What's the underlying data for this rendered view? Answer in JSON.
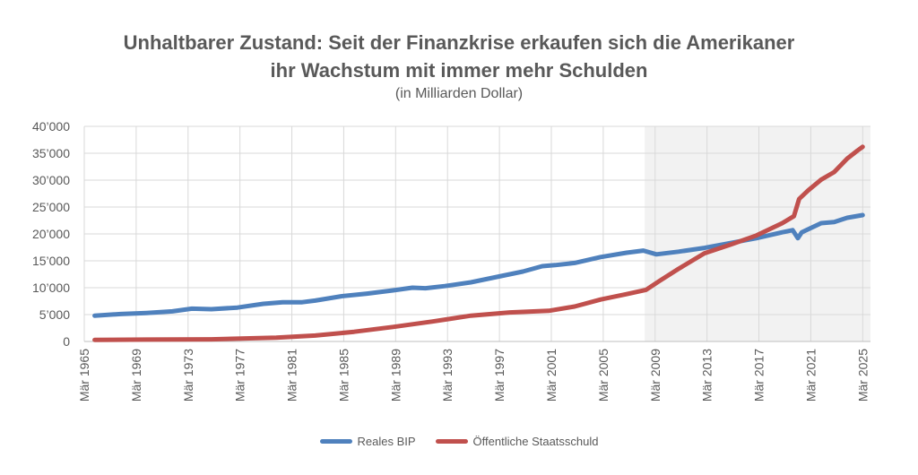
{
  "chart_data": {
    "type": "line",
    "title_line1": "Unhaltbarer Zustand: Seit der Finanzkrise erkaufen sich die Amerikaner",
    "title_line2": "ihr Wachstum mit immer mehr Schulden",
    "subtitle": "(in Milliarden Dollar)",
    "ylim": [
      0,
      40000
    ],
    "xlim": [
      1965.2,
      2025.8
    ],
    "y_ticks": [
      0,
      5000,
      10000,
      15000,
      20000,
      25000,
      30000,
      35000,
      40000
    ],
    "y_tick_labels": [
      "0",
      "5’000",
      "10’000",
      "15’000",
      "20’000",
      "25’000",
      "30’000",
      "35’000",
      "40’000"
    ],
    "x_ticks": [
      1965.2,
      1969.2,
      1973.2,
      1977.2,
      1981.2,
      1985.2,
      1989.2,
      1993.2,
      1997.2,
      2001.2,
      2005.2,
      2009.2,
      2013.2,
      2017.2,
      2021.2,
      2025.2
    ],
    "x_tick_labels": [
      "Mär 1965",
      "Mär 1969",
      "Mär 1973",
      "Mär 1977",
      "Mär 1981",
      "Mär 1985",
      "Mär 1989",
      "Mär 1993",
      "Mär 1997",
      "Mär 2001",
      "Mär 2005",
      "Mär 2009",
      "Mär 2013",
      "Mär 2017",
      "Mär 2021",
      "Mär 2025"
    ],
    "grid": true,
    "legend_position": "bottom",
    "highlight_range": [
      2008.4,
      2025.8
    ],
    "series": [
      {
        "name": "Reales BIP",
        "color": "#4f81bd",
        "points": [
          [
            1966.0,
            4800
          ],
          [
            1968.0,
            5100
          ],
          [
            1970.0,
            5300
          ],
          [
            1972.0,
            5600
          ],
          [
            1973.5,
            6100
          ],
          [
            1975.0,
            6000
          ],
          [
            1977.0,
            6300
          ],
          [
            1979.0,
            7000
          ],
          [
            1980.5,
            7300
          ],
          [
            1982.0,
            7300
          ],
          [
            1983.0,
            7600
          ],
          [
            1985.0,
            8400
          ],
          [
            1987.0,
            8900
          ],
          [
            1989.0,
            9500
          ],
          [
            1990.5,
            10000
          ],
          [
            1991.5,
            9900
          ],
          [
            1993.0,
            10300
          ],
          [
            1995.0,
            11000
          ],
          [
            1997.0,
            12000
          ],
          [
            1999.0,
            13000
          ],
          [
            2000.5,
            14000
          ],
          [
            2001.5,
            14200
          ],
          [
            2003.0,
            14600
          ],
          [
            2005.0,
            15700
          ],
          [
            2007.0,
            16500
          ],
          [
            2008.3,
            16900
          ],
          [
            2009.3,
            16200
          ],
          [
            2011.0,
            16700
          ],
          [
            2013.0,
            17400
          ],
          [
            2015.0,
            18300
          ],
          [
            2017.0,
            19200
          ],
          [
            2019.0,
            20300
          ],
          [
            2019.8,
            20700
          ],
          [
            2020.2,
            19200
          ],
          [
            2020.5,
            20300
          ],
          [
            2022.0,
            22000
          ],
          [
            2023.0,
            22200
          ],
          [
            2024.0,
            23000
          ],
          [
            2025.2,
            23500
          ]
        ]
      },
      {
        "name": "Öffentliche Staatsschuld",
        "color": "#c0504d",
        "points": [
          [
            1966.0,
            300
          ],
          [
            1970.0,
            350
          ],
          [
            1975.0,
            400
          ],
          [
            1980.0,
            700
          ],
          [
            1983.0,
            1100
          ],
          [
            1986.0,
            1800
          ],
          [
            1989.0,
            2700
          ],
          [
            1992.0,
            3700
          ],
          [
            1995.0,
            4800
          ],
          [
            1998.0,
            5400
          ],
          [
            2001.0,
            5700
          ],
          [
            2003.0,
            6500
          ],
          [
            2005.0,
            7800
          ],
          [
            2007.0,
            8800
          ],
          [
            2008.5,
            9600
          ],
          [
            2009.5,
            11200
          ],
          [
            2011.0,
            13500
          ],
          [
            2013.0,
            16400
          ],
          [
            2015.0,
            18000
          ],
          [
            2017.0,
            19700
          ],
          [
            2019.0,
            22000
          ],
          [
            2019.9,
            23300
          ],
          [
            2020.3,
            26500
          ],
          [
            2021.0,
            28100
          ],
          [
            2022.0,
            30100
          ],
          [
            2023.0,
            31500
          ],
          [
            2024.0,
            34000
          ],
          [
            2024.8,
            35500
          ],
          [
            2025.2,
            36200
          ]
        ]
      }
    ]
  }
}
